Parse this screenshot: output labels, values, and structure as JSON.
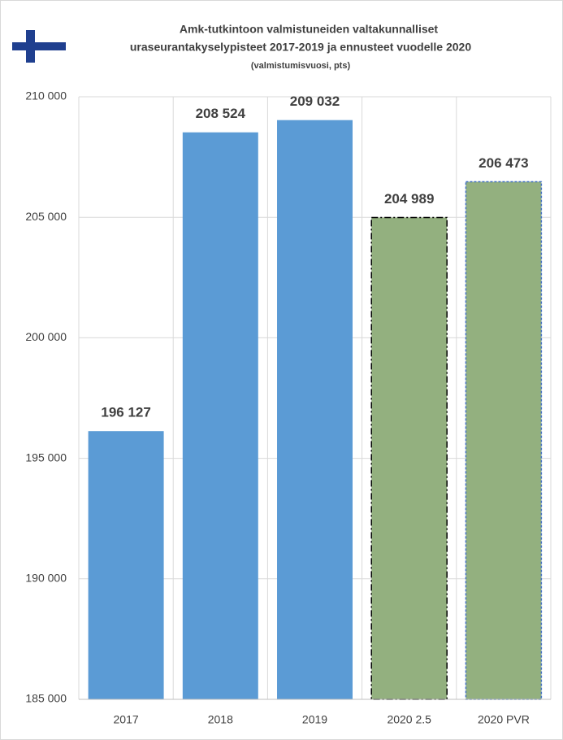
{
  "chart_data": {
    "type": "bar",
    "title": [
      "Amk-tutkintoon valmistuneiden valtakunnalliset",
      "uraseurantakyselypisteet 2017-2019 ja ennusteet vuodelle 2020"
    ],
    "subtitle": "(valmistumisvuosi, pts)",
    "categories": [
      "2017",
      "2018",
      "2019",
      "2020 2.5",
      "2020 PVR"
    ],
    "values": [
      196127,
      208524,
      209032,
      204989,
      206473
    ],
    "value_labels": [
      "196 127",
      "208 524",
      "209 032",
      "204 989",
      "206 473"
    ],
    "colors": [
      "#5b9bd5",
      "#5b9bd5",
      "#5b9bd5",
      "#93b07f",
      "#93b07f"
    ],
    "edgecolors": [
      null,
      null,
      null,
      "#000000",
      "#4472c4"
    ],
    "linestyles": [
      null,
      null,
      null,
      "dashdot",
      "dashed"
    ],
    "ylim": [
      185000,
      210000
    ],
    "yticks": [
      {
        "value": 185000,
        "label": "185 000"
      },
      {
        "value": 190000,
        "label": "190 000"
      },
      {
        "value": 195000,
        "label": "195 000"
      },
      {
        "value": 200000,
        "label": "200 000"
      },
      {
        "value": 205000,
        "label": "205 000"
      },
      {
        "value": 210000,
        "label": "210 000"
      }
    ],
    "grid": true
  }
}
